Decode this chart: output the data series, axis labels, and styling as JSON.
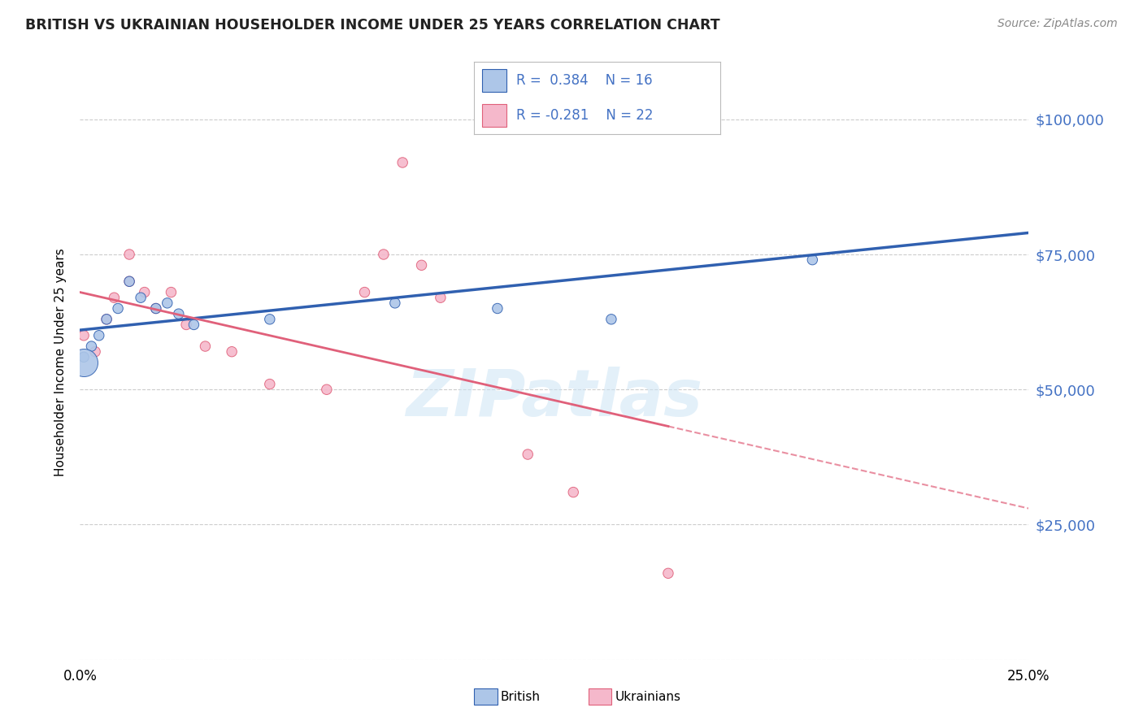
{
  "title": "BRITISH VS UKRAINIAN HOUSEHOLDER INCOME UNDER 25 YEARS CORRELATION CHART",
  "source": "Source: ZipAtlas.com",
  "ylabel": "Householder Income Under 25 years",
  "xlim": [
    0.0,
    0.25
  ],
  "ylim": [
    0,
    110000
  ],
  "yticks": [
    0,
    25000,
    50000,
    75000,
    100000
  ],
  "ytick_labels": [
    "",
    "$25,000",
    "$50,000",
    "$75,000",
    "$100,000"
  ],
  "legend_r_british": "R =  0.384",
  "legend_n_british": "N = 16",
  "legend_r_ukrainian": "R = -0.281",
  "legend_n_ukrainian": "N = 22",
  "british_color": "#adc6e8",
  "ukrainian_color": "#f5b8cb",
  "british_line_color": "#3060b0",
  "ukrainian_line_color": "#e0607a",
  "ytick_color": "#4472c4",
  "watermark_text": "ZIPatlas",
  "british_x": [
    0.001,
    0.003,
    0.005,
    0.007,
    0.01,
    0.013,
    0.016,
    0.02,
    0.023,
    0.026,
    0.03,
    0.05,
    0.083,
    0.11,
    0.14,
    0.193
  ],
  "british_y": [
    56000,
    58000,
    60000,
    63000,
    65000,
    70000,
    67000,
    65000,
    66000,
    64000,
    62000,
    63000,
    66000,
    65000,
    63000,
    74000
  ],
  "british_sizes": [
    80,
    80,
    80,
    80,
    80,
    80,
    80,
    80,
    80,
    80,
    80,
    80,
    80,
    80,
    80,
    80
  ],
  "british_big_x": [
    0.001
  ],
  "british_big_y": [
    56000
  ],
  "british_big_size": 500,
  "ukrainian_x": [
    0.001,
    0.004,
    0.007,
    0.009,
    0.013,
    0.013,
    0.017,
    0.02,
    0.024,
    0.028,
    0.033,
    0.04,
    0.05,
    0.065,
    0.075,
    0.08,
    0.085,
    0.09,
    0.095,
    0.118,
    0.13,
    0.155
  ],
  "ukrainian_y": [
    60000,
    57000,
    63000,
    67000,
    70000,
    75000,
    68000,
    65000,
    68000,
    62000,
    58000,
    57000,
    51000,
    50000,
    68000,
    75000,
    92000,
    73000,
    67000,
    38000,
    31000,
    16000
  ],
  "ukrainian_sizes": [
    80,
    80,
    80,
    80,
    80,
    80,
    80,
    80,
    80,
    80,
    80,
    80,
    80,
    80,
    80,
    80,
    80,
    80,
    80,
    80,
    80,
    80
  ],
  "background_color": "#ffffff",
  "grid_color": "#cccccc",
  "xtick_positions": [
    0.0,
    0.05,
    0.1,
    0.15,
    0.2,
    0.25
  ],
  "xtick_labels": [
    "0.0%",
    "",
    "",
    "",
    "",
    "25.0%"
  ]
}
